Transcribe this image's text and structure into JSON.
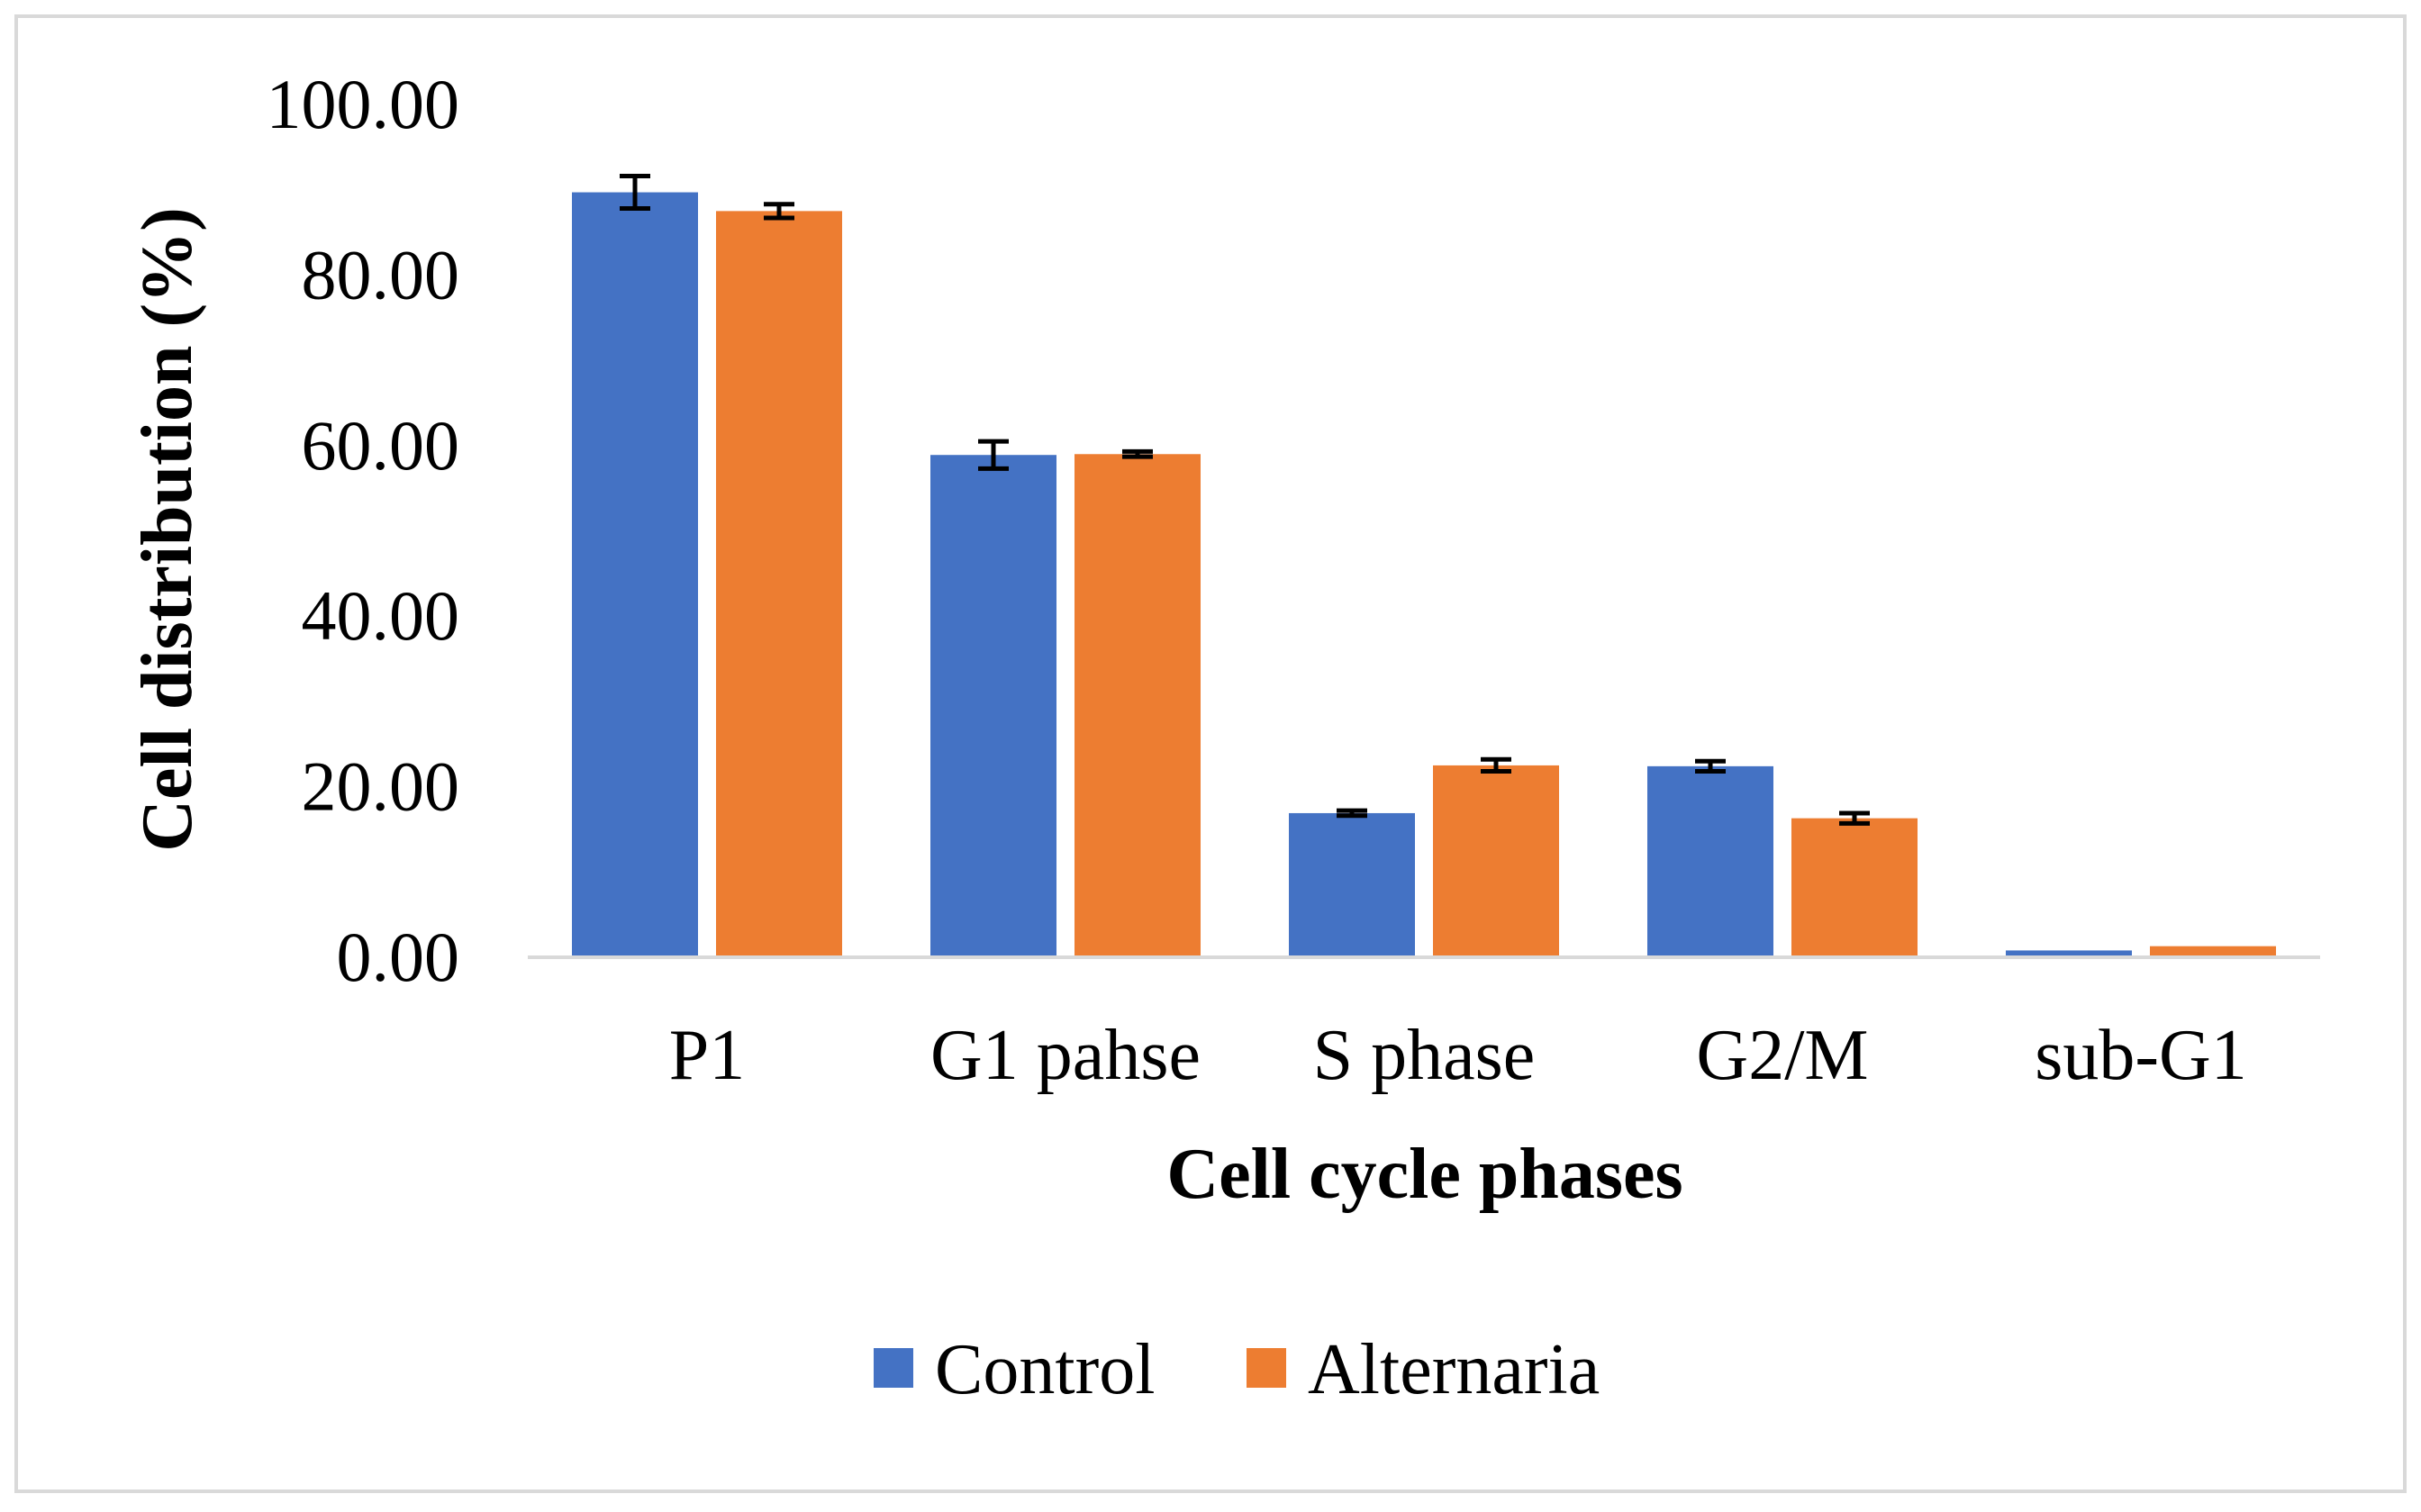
{
  "chart_data": {
    "type": "bar",
    "title": "",
    "xlabel": "Cell cycle phases",
    "ylabel": "Cell distribution (%)",
    "ylim": [
      0,
      100
    ],
    "yticks": [
      "0.00",
      "20.00",
      "40.00",
      "60.00",
      "80.00",
      "100.00"
    ],
    "ytick_values": [
      0,
      20,
      40,
      60,
      80,
      100
    ],
    "categories": [
      "P1",
      "G1 pahse",
      "S phase",
      "G2/M",
      "sub-G1"
    ],
    "series": [
      {
        "name": "Control",
        "color": "#4472C4",
        "values": [
          89.7,
          58.9,
          16.9,
          22.4,
          0.8
        ],
        "errors": [
          1.9,
          1.6,
          0.3,
          0.6,
          0
        ]
      },
      {
        "name": "Alternaria",
        "color": "#ED7D31",
        "values": [
          87.5,
          59.0,
          22.5,
          16.3,
          1.3
        ],
        "errors": [
          0.8,
          0.3,
          0.7,
          0.6,
          0
        ]
      }
    ],
    "grid": false,
    "legend": "bottom"
  }
}
